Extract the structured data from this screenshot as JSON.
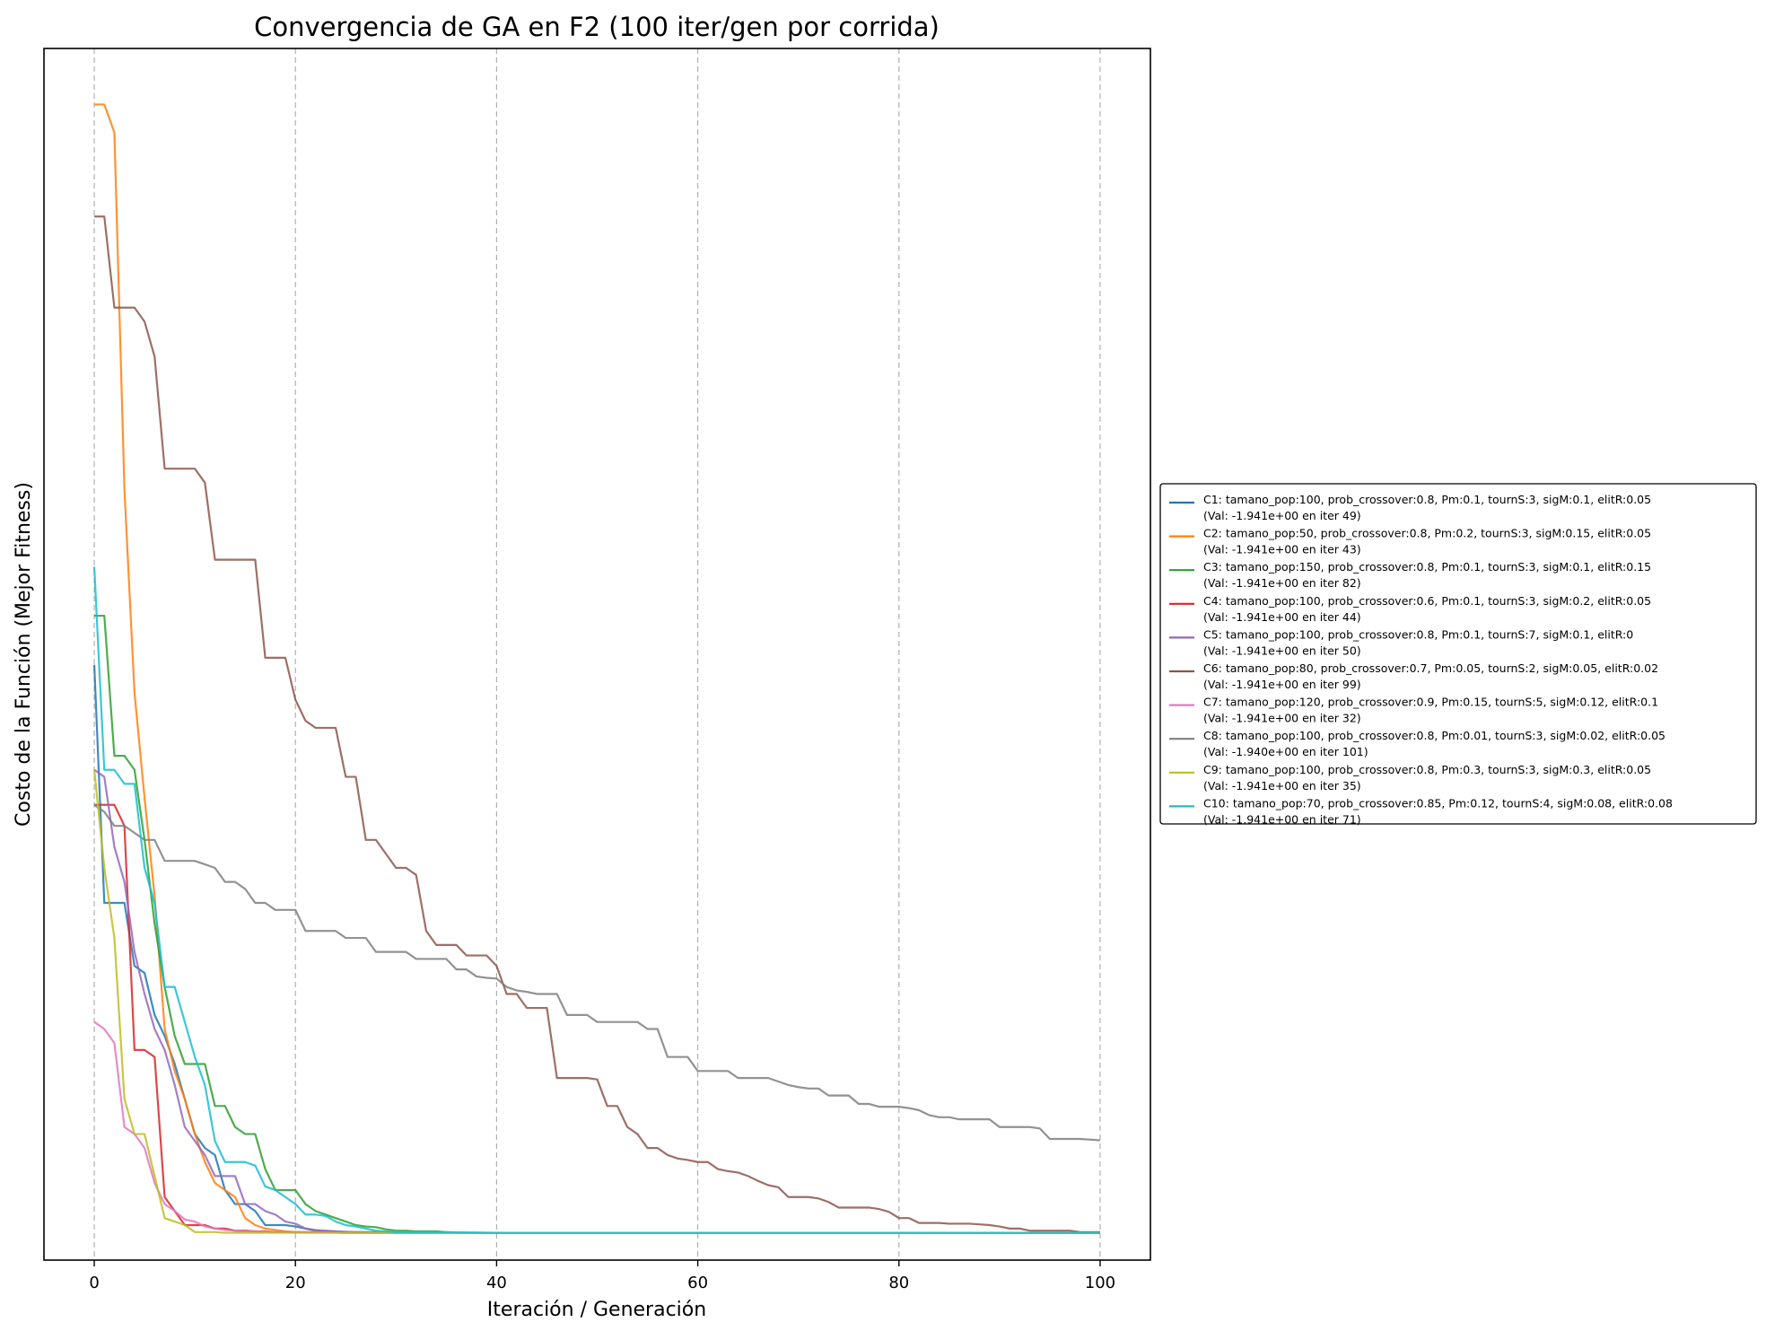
{
  "chart_data": {
    "type": "line",
    "title": "Convergencia de GA en F2 (100 iter/gen por corrida)",
    "xlabel": "Iteración / Generación",
    "ylabel": "Costo de la Función (Mejor Fitness)",
    "xlim": [
      -5,
      105
    ],
    "ylim": [
      -1.98,
      -0.25
    ],
    "xticks": [
      0,
      20,
      40,
      60,
      80,
      100
    ],
    "yticks_visible": false,
    "grid": "x-dashed",
    "legend_position": "right-outside",
    "series": [
      {
        "name": "C1: tamano_pop:100, prob_crossover:0.8, Pm:0.1, tournS:3, sigM:0.1, elitR:0.05",
        "note": "(Val: -1.941e+00 en iter 49)",
        "color": "#1f77b4",
        "x": [
          0,
          1,
          2,
          3,
          4,
          5,
          6,
          7,
          8,
          9,
          10,
          11,
          12,
          13,
          14,
          15,
          16,
          17,
          18,
          19,
          20,
          21,
          22,
          23,
          24,
          25,
          26,
          27,
          28,
          30,
          35,
          40,
          50,
          60,
          70,
          80,
          90,
          100
        ],
        "y": [
          -1.13,
          -1.47,
          -1.47,
          -1.47,
          -1.56,
          -1.57,
          -1.63,
          -1.66,
          -1.7,
          -1.75,
          -1.8,
          -1.82,
          -1.83,
          -1.88,
          -1.9,
          -1.9,
          -1.91,
          -1.93,
          -1.93,
          -1.93,
          -1.932,
          -1.935,
          -1.938,
          -1.939,
          -1.939,
          -1.94,
          -1.94,
          -1.94,
          -1.94,
          -1.941,
          -1.941,
          -1.941,
          -1.941,
          -1.941,
          -1.941,
          -1.941,
          -1.941,
          -1.941
        ]
      },
      {
        "name": "C2: tamano_pop:50, prob_crossover:0.8, Pm:0.2, tournS:3, sigM:0.15, elitR:0.05",
        "note": "(Val: -1.941e+00 en iter 43)",
        "color": "#ff7f0e",
        "x": [
          0,
          1,
          2,
          3,
          4,
          5,
          6,
          7,
          8,
          9,
          10,
          11,
          12,
          13,
          14,
          15,
          16,
          17,
          18,
          19,
          20,
          22,
          25,
          30,
          35,
          40,
          43,
          50,
          60,
          70,
          80,
          90,
          100
        ],
        "y": [
          -0.33,
          -0.33,
          -0.37,
          -0.88,
          -1.17,
          -1.32,
          -1.46,
          -1.65,
          -1.71,
          -1.75,
          -1.8,
          -1.84,
          -1.87,
          -1.88,
          -1.89,
          -1.92,
          -1.93,
          -1.935,
          -1.937,
          -1.939,
          -1.94,
          -1.94,
          -1.941,
          -1.941,
          -1.941,
          -1.941,
          -1.941,
          -1.941,
          -1.941,
          -1.941,
          -1.941,
          -1.941,
          -1.941
        ]
      },
      {
        "name": "C3: tamano_pop:150, prob_crossover:0.8, Pm:0.1, tournS:3, sigM:0.1, elitR:0.15",
        "note": "(Val: -1.941e+00 en iter 82)",
        "color": "#2ca02c",
        "x": [
          0,
          1,
          2,
          3,
          4,
          5,
          6,
          7,
          8,
          9,
          10,
          11,
          12,
          13,
          14,
          15,
          16,
          17,
          18,
          19,
          20,
          21,
          22,
          23,
          24,
          25,
          26,
          27,
          28,
          29,
          30,
          31,
          32,
          33,
          34,
          35,
          36,
          40,
          50,
          60,
          70,
          80,
          82,
          90,
          100
        ],
        "y": [
          -1.06,
          -1.06,
          -1.26,
          -1.26,
          -1.28,
          -1.38,
          -1.5,
          -1.59,
          -1.66,
          -1.7,
          -1.7,
          -1.7,
          -1.76,
          -1.76,
          -1.79,
          -1.8,
          -1.8,
          -1.85,
          -1.88,
          -1.88,
          -1.88,
          -1.9,
          -1.91,
          -1.915,
          -1.92,
          -1.925,
          -1.93,
          -1.932,
          -1.933,
          -1.936,
          -1.938,
          -1.938,
          -1.939,
          -1.939,
          -1.939,
          -1.94,
          -1.941,
          -1.941,
          -1.941,
          -1.941,
          -1.941,
          -1.941,
          -1.941,
          -1.941,
          -1.941
        ]
      },
      {
        "name": "C4: tamano_pop:100, prob_crossover:0.6, Pm:0.1, tournS:3, sigM:0.2, elitR:0.05",
        "note": "(Val: -1.941e+00 en iter 44)",
        "color": "#d62728",
        "x": [
          0,
          1,
          2,
          3,
          4,
          5,
          6,
          7,
          8,
          9,
          10,
          11,
          12,
          13,
          14,
          15,
          16,
          17,
          18,
          20,
          25,
          30,
          40,
          44,
          50,
          60,
          70,
          80,
          90,
          100
        ],
        "y": [
          -1.33,
          -1.33,
          -1.33,
          -1.36,
          -1.68,
          -1.68,
          -1.69,
          -1.89,
          -1.91,
          -1.93,
          -1.93,
          -1.93,
          -1.935,
          -1.935,
          -1.938,
          -1.938,
          -1.939,
          -1.939,
          -1.94,
          -1.94,
          -1.941,
          -1.941,
          -1.941,
          -1.941,
          -1.941,
          -1.941,
          -1.941,
          -1.941,
          -1.941,
          -1.941
        ]
      },
      {
        "name": "C5: tamano_pop:100, prob_crossover:0.8, Pm:0.1, tournS:7, sigM:0.1, elitR:0",
        "note": "(Val: -1.941e+00 en iter 50)",
        "color": "#9467bd",
        "x": [
          0,
          1,
          2,
          3,
          4,
          5,
          6,
          7,
          8,
          9,
          10,
          11,
          12,
          13,
          14,
          15,
          16,
          17,
          18,
          19,
          20,
          21,
          22,
          24,
          26,
          30,
          40,
          50,
          60,
          70,
          80,
          90,
          100
        ],
        "y": [
          -1.28,
          -1.29,
          -1.39,
          -1.44,
          -1.54,
          -1.6,
          -1.65,
          -1.68,
          -1.73,
          -1.79,
          -1.81,
          -1.83,
          -1.86,
          -1.86,
          -1.86,
          -1.9,
          -1.9,
          -1.91,
          -1.915,
          -1.925,
          -1.928,
          -1.935,
          -1.937,
          -1.939,
          -1.94,
          -1.941,
          -1.941,
          -1.941,
          -1.941,
          -1.941,
          -1.941,
          -1.941,
          -1.941
        ]
      },
      {
        "name": "C6: tamano_pop:80, prob_crossover:0.7, Pm:0.05, tournS:2, sigM:0.05, elitR:0.02",
        "note": "(Val: -1.941e+00 en iter 99)",
        "color": "#8c564b",
        "x": [
          0,
          1,
          2,
          3,
          4,
          5,
          6,
          7,
          8,
          9,
          10,
          11,
          12,
          13,
          14,
          15,
          16,
          17,
          18,
          19,
          20,
          21,
          22,
          23,
          24,
          25,
          26,
          27,
          28,
          29,
          30,
          31,
          32,
          33,
          34,
          35,
          36,
          37,
          38,
          39,
          40,
          41,
          42,
          43,
          44,
          45,
          46,
          47,
          48,
          49,
          50,
          51,
          52,
          53,
          54,
          55,
          56,
          57,
          58,
          59,
          60,
          61,
          62,
          63,
          64,
          65,
          66,
          67,
          68,
          69,
          70,
          71,
          72,
          73,
          74,
          75,
          76,
          77,
          78,
          79,
          80,
          81,
          82,
          83,
          84,
          85,
          86,
          87,
          88,
          89,
          90,
          91,
          92,
          93,
          94,
          95,
          96,
          97,
          98,
          99,
          100
        ],
        "y": [
          -0.49,
          -0.49,
          -0.62,
          -0.62,
          -0.62,
          -0.64,
          -0.69,
          -0.85,
          -0.85,
          -0.85,
          -0.85,
          -0.87,
          -0.98,
          -0.98,
          -0.98,
          -0.98,
          -0.98,
          -1.12,
          -1.12,
          -1.12,
          -1.18,
          -1.21,
          -1.22,
          -1.22,
          -1.22,
          -1.29,
          -1.29,
          -1.38,
          -1.38,
          -1.4,
          -1.42,
          -1.42,
          -1.43,
          -1.51,
          -1.53,
          -1.53,
          -1.53,
          -1.545,
          -1.545,
          -1.545,
          -1.56,
          -1.6,
          -1.6,
          -1.62,
          -1.62,
          -1.62,
          -1.72,
          -1.72,
          -1.72,
          -1.72,
          -1.722,
          -1.76,
          -1.76,
          -1.79,
          -1.8,
          -1.82,
          -1.82,
          -1.83,
          -1.835,
          -1.837,
          -1.84,
          -1.84,
          -1.85,
          -1.853,
          -1.855,
          -1.86,
          -1.867,
          -1.873,
          -1.876,
          -1.89,
          -1.89,
          -1.89,
          -1.892,
          -1.897,
          -1.905,
          -1.905,
          -1.905,
          -1.905,
          -1.907,
          -1.911,
          -1.92,
          -1.92,
          -1.927,
          -1.927,
          -1.927,
          -1.928,
          -1.928,
          -1.928,
          -1.929,
          -1.93,
          -1.932,
          -1.935,
          -1.935,
          -1.938,
          -1.938,
          -1.938,
          -1.938,
          -1.938,
          -1.94,
          -1.94,
          -1.94
        ]
      },
      {
        "name": "C7: tamano_pop:120, prob_crossover:0.9, Pm:0.15, tournS:5, sigM:0.12, elitR:0.1",
        "note": "(Val: -1.941e+00 en iter 32)",
        "color": "#e377c2",
        "x": [
          0,
          1,
          2,
          3,
          4,
          5,
          6,
          7,
          8,
          9,
          10,
          11,
          12,
          13,
          14,
          15,
          16,
          18,
          20,
          25,
          30,
          32,
          40,
          50,
          60,
          70,
          80,
          90,
          100
        ],
        "y": [
          -1.64,
          -1.65,
          -1.67,
          -1.79,
          -1.8,
          -1.82,
          -1.87,
          -1.9,
          -1.91,
          -1.922,
          -1.925,
          -1.932,
          -1.935,
          -1.937,
          -1.938,
          -1.939,
          -1.939,
          -1.94,
          -1.94,
          -1.941,
          -1.941,
          -1.941,
          -1.941,
          -1.941,
          -1.941,
          -1.941,
          -1.941,
          -1.941,
          -1.941
        ]
      },
      {
        "name": "C8: tamano_pop:100, prob_crossover:0.8, Pm:0.01, tournS:3, sigM:0.02, elitR:0.05",
        "note": "(Val: -1.940e+00 en iter 101)",
        "color": "#7f7f7f",
        "x": [
          0,
          1,
          2,
          3,
          4,
          5,
          6,
          7,
          8,
          9,
          10,
          11,
          12,
          13,
          14,
          15,
          16,
          17,
          18,
          19,
          20,
          21,
          22,
          23,
          24,
          25,
          26,
          27,
          28,
          29,
          30,
          31,
          32,
          33,
          34,
          35,
          36,
          37,
          38,
          39,
          40,
          41,
          42,
          43,
          44,
          45,
          46,
          47,
          48,
          49,
          50,
          51,
          52,
          53,
          54,
          55,
          56,
          57,
          58,
          59,
          60,
          61,
          62,
          63,
          64,
          65,
          66,
          67,
          68,
          69,
          70,
          71,
          72,
          73,
          74,
          75,
          76,
          77,
          78,
          79,
          80,
          81,
          82,
          83,
          84,
          85,
          86,
          87,
          88,
          89,
          90,
          91,
          92,
          93,
          94,
          95,
          96,
          97,
          98,
          99,
          100
        ],
        "y": [
          -1.33,
          -1.34,
          -1.36,
          -1.36,
          -1.37,
          -1.38,
          -1.38,
          -1.41,
          -1.41,
          -1.41,
          -1.41,
          -1.415,
          -1.42,
          -1.44,
          -1.44,
          -1.45,
          -1.47,
          -1.47,
          -1.48,
          -1.48,
          -1.48,
          -1.51,
          -1.51,
          -1.51,
          -1.51,
          -1.52,
          -1.52,
          -1.52,
          -1.54,
          -1.54,
          -1.54,
          -1.54,
          -1.55,
          -1.55,
          -1.55,
          -1.55,
          -1.565,
          -1.565,
          -1.575,
          -1.577,
          -1.578,
          -1.59,
          -1.595,
          -1.597,
          -1.6,
          -1.6,
          -1.6,
          -1.63,
          -1.63,
          -1.63,
          -1.64,
          -1.64,
          -1.64,
          -1.64,
          -1.64,
          -1.65,
          -1.65,
          -1.69,
          -1.69,
          -1.69,
          -1.71,
          -1.71,
          -1.71,
          -1.71,
          -1.72,
          -1.72,
          -1.72,
          -1.72,
          -1.725,
          -1.73,
          -1.733,
          -1.735,
          -1.735,
          -1.745,
          -1.745,
          -1.745,
          -1.757,
          -1.757,
          -1.761,
          -1.761,
          -1.761,
          -1.763,
          -1.766,
          -1.773,
          -1.776,
          -1.776,
          -1.779,
          -1.779,
          -1.779,
          -1.779,
          -1.79,
          -1.79,
          -1.79,
          -1.79,
          -1.792,
          -1.807,
          -1.807,
          -1.807,
          -1.807,
          -1.808,
          -1.809
        ]
      },
      {
        "name": "C9: tamano_pop:100, prob_crossover:0.8, Pm:0.3, tournS:3, sigM:0.3, elitR:0.05",
        "note": "(Val: -1.941e+00 en iter 35)",
        "color": "#bcbd22",
        "x": [
          0,
          1,
          2,
          3,
          4,
          5,
          6,
          7,
          8,
          9,
          10,
          11,
          12,
          13,
          14,
          15,
          20,
          25,
          30,
          35,
          40,
          50,
          60,
          70,
          80,
          90,
          100
        ],
        "y": [
          -1.28,
          -1.42,
          -1.52,
          -1.75,
          -1.8,
          -1.8,
          -1.86,
          -1.92,
          -1.925,
          -1.93,
          -1.94,
          -1.94,
          -1.94,
          -1.941,
          -1.941,
          -1.941,
          -1.941,
          -1.941,
          -1.941,
          -1.941,
          -1.941,
          -1.941,
          -1.941,
          -1.941,
          -1.941,
          -1.941,
          -1.941
        ]
      },
      {
        "name": "C10: tamano_pop:70, prob_crossover:0.85, Pm:0.12, tournS:4, sigM:0.08, elitR:0.08",
        "note": "(Val: -1.941e+00 en iter 71)",
        "color": "#17becf",
        "x": [
          0,
          1,
          2,
          3,
          4,
          5,
          6,
          7,
          8,
          9,
          10,
          11,
          12,
          13,
          14,
          15,
          16,
          17,
          18,
          19,
          20,
          21,
          22,
          23,
          24,
          25,
          26,
          27,
          28,
          29,
          30,
          35,
          40,
          50,
          60,
          70,
          71,
          80,
          90,
          100
        ],
        "y": [
          -0.99,
          -1.28,
          -1.28,
          -1.3,
          -1.3,
          -1.42,
          -1.47,
          -1.59,
          -1.59,
          -1.64,
          -1.69,
          -1.73,
          -1.81,
          -1.84,
          -1.84,
          -1.84,
          -1.845,
          -1.875,
          -1.88,
          -1.89,
          -1.9,
          -1.915,
          -1.915,
          -1.917,
          -1.925,
          -1.93,
          -1.932,
          -1.935,
          -1.938,
          -1.939,
          -1.94,
          -1.94,
          -1.941,
          -1.941,
          -1.941,
          -1.941,
          -1.941,
          -1.941,
          -1.941,
          -1.941
        ]
      }
    ]
  }
}
